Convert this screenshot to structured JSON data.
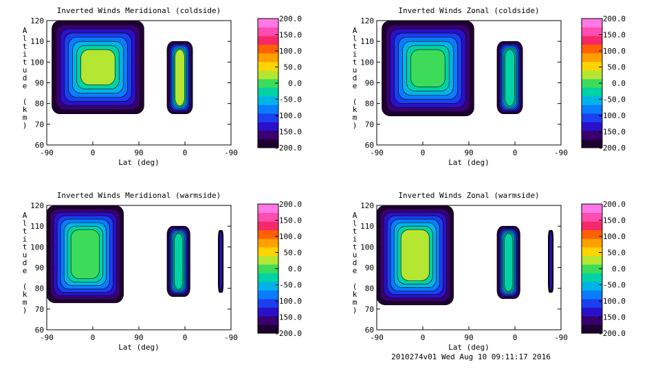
{
  "chart_data": [
    {
      "type": "heatmap",
      "title": "Inverted Winds Meridional (coldside)",
      "xlabel": "Lat (deg)",
      "ylabel": "Altitude (km)",
      "x_ticks": [
        "-90",
        "0",
        "90",
        "0",
        "-90"
      ],
      "y_ticks": [
        "60",
        "70",
        "80",
        "90",
        "100",
        "110",
        "120"
      ],
      "ylim": [
        60,
        120
      ],
      "colorbar_ticks": [
        "200.0",
        "150.0",
        "100.0",
        "50.0",
        "0.0",
        "-50.0",
        "-100.0",
        "-150.0",
        "-200.0"
      ],
      "colorbar_range": [
        -200,
        200
      ],
      "regions": [
        {
          "lat_range": [
            -80,
            100
          ],
          "alt_range": [
            75,
            120
          ],
          "value": 20
        },
        {
          "lat_range": [
            -15,
            35
          ],
          "alt_range": [
            75,
            110
          ],
          "value": 30
        }
      ]
    },
    {
      "type": "heatmap",
      "title": "Inverted Winds Zonal (coldside)",
      "xlabel": "Lat (deg)",
      "ylabel": "Altitude (km)",
      "x_ticks": [
        "-90",
        "0",
        "90",
        "0",
        "-90"
      ],
      "y_ticks": [
        "60",
        "70",
        "80",
        "90",
        "100",
        "110",
        "120"
      ],
      "ylim": [
        60,
        120
      ],
      "colorbar_ticks": [
        "200.0",
        "150.0",
        "100.0",
        "50.0",
        "0.0",
        "-50.0",
        "-100.0",
        "-150.0",
        "-200.0"
      ],
      "colorbar_range": [
        -200,
        200
      ],
      "regions": [
        {
          "lat_range": [
            -80,
            100
          ],
          "alt_range": [
            74,
            120
          ],
          "value": 0
        },
        {
          "lat_range": [
            -15,
            35
          ],
          "alt_range": [
            75,
            110
          ],
          "value": -20
        }
      ]
    },
    {
      "type": "heatmap",
      "title": "Inverted Winds Meridional (warmside)",
      "xlabel": "Lat (deg)",
      "ylabel": "Altitude (km)",
      "x_ticks": [
        "-90",
        "0",
        "90",
        "0",
        "-90"
      ],
      "y_ticks": [
        "60",
        "70",
        "80",
        "90",
        "100",
        "110",
        "120"
      ],
      "ylim": [
        60,
        120
      ],
      "colorbar_ticks": [
        "200.0",
        "150.0",
        "100.0",
        "50.0",
        "0.0",
        "-50.0",
        "-100.0",
        "-150.0",
        "-200.0"
      ],
      "colorbar_range": [
        -200,
        200
      ],
      "regions": [
        {
          "lat_range": [
            -90,
            60
          ],
          "alt_range": [
            73,
            120
          ],
          "value": 10
        },
        {
          "lat_range": [
            -10,
            35
          ],
          "alt_range": [
            76,
            110
          ],
          "value": -30
        },
        {
          "lat_range": [
            -65,
            -75
          ],
          "alt_range": [
            78,
            108
          ],
          "value": -130
        }
      ]
    },
    {
      "type": "heatmap",
      "title": "Inverted Winds Zonal (warmside)",
      "xlabel": "Lat (deg)",
      "ylabel": "Altitude (km)",
      "x_ticks": [
        "-90",
        "0",
        "90",
        "0",
        "-90"
      ],
      "y_ticks": [
        "60",
        "70",
        "80",
        "90",
        "100",
        "110",
        "120"
      ],
      "ylim": [
        60,
        120
      ],
      "colorbar_ticks": [
        "200.0",
        "150.0",
        "100.0",
        "50.0",
        "0.0",
        "-50.0",
        "-100.0",
        "-150.0",
        "-200.0"
      ],
      "colorbar_range": [
        -200,
        200
      ],
      "regions": [
        {
          "lat_range": [
            -90,
            60
          ],
          "alt_range": [
            72,
            120
          ],
          "value": 30
        },
        {
          "lat_range": [
            -10,
            35
          ],
          "alt_range": [
            75,
            110
          ],
          "value": -20
        },
        {
          "lat_range": [
            -65,
            -75
          ],
          "alt_range": [
            78,
            108
          ],
          "value": -140
        }
      ]
    }
  ],
  "footer": "2010274v01 Wed Aug 10 09:11:17 2016",
  "colormap": [
    "#1e0030",
    "#3a0070",
    "#2a10c8",
    "#1a40f0",
    "#0a7cff",
    "#00b4e6",
    "#00d2a6",
    "#3cdc5a",
    "#b4e632",
    "#ffd400",
    "#ffa000",
    "#ff6000",
    "#f5286a",
    "#ff4cb0",
    "#ff78e6"
  ]
}
